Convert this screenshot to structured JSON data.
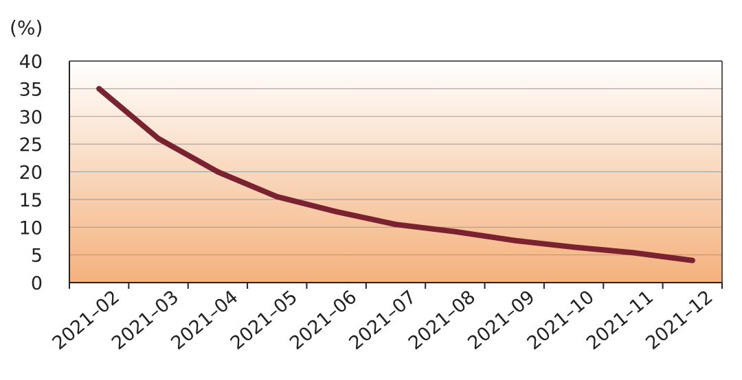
{
  "chart_data": {
    "type": "line",
    "ylabel": "(%)",
    "categories": [
      "2021–02",
      "2021–03",
      "2021–04",
      "2021–05",
      "2021–06",
      "2021–07",
      "2021–08",
      "2021–09",
      "2021–10",
      "2021–11",
      "2021–12"
    ],
    "values": [
      35,
      26,
      20,
      15.5,
      12.8,
      10.5,
      9.2,
      7.6,
      6.4,
      5.4,
      4.0
    ],
    "yticks": [
      0,
      5,
      10,
      15,
      20,
      25,
      30,
      35,
      40
    ],
    "ylim": [
      0,
      40
    ],
    "grid": true,
    "colors": {
      "line": "#7a2230",
      "gradient_top": "#ffffff",
      "gradient_bottom": "#f4b17c",
      "grid": "#999999",
      "axis": "#222222"
    }
  }
}
